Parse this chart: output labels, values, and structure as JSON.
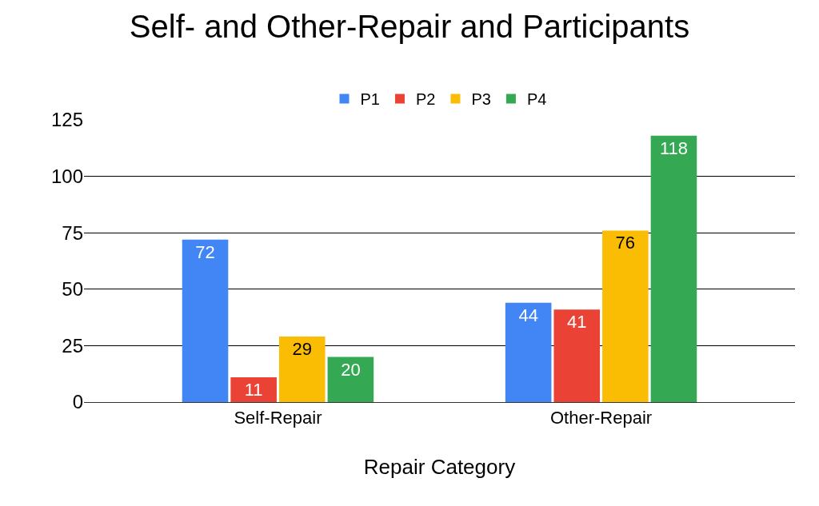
{
  "chart_data": {
    "type": "bar",
    "title": "Self- and Other-Repair and Participants",
    "xlabel": "Repair Category",
    "categories": [
      "Self-Repair",
      "Other-Repair"
    ],
    "series": [
      {
        "name": "P1",
        "color": "#4285f4",
        "values": [
          72,
          44
        ]
      },
      {
        "name": "P2",
        "color": "#ea4335",
        "values": [
          11,
          41
        ]
      },
      {
        "name": "P3",
        "color": "#fbbc04",
        "values": [
          29,
          76
        ]
      },
      {
        "name": "P4",
        "color": "#34a853",
        "values": [
          20,
          118
        ]
      }
    ],
    "ylim": [
      0,
      125
    ],
    "yticks": [
      0,
      25,
      50,
      75,
      100,
      125
    ],
    "grid": "y",
    "legend": "top",
    "data_labels": true
  }
}
